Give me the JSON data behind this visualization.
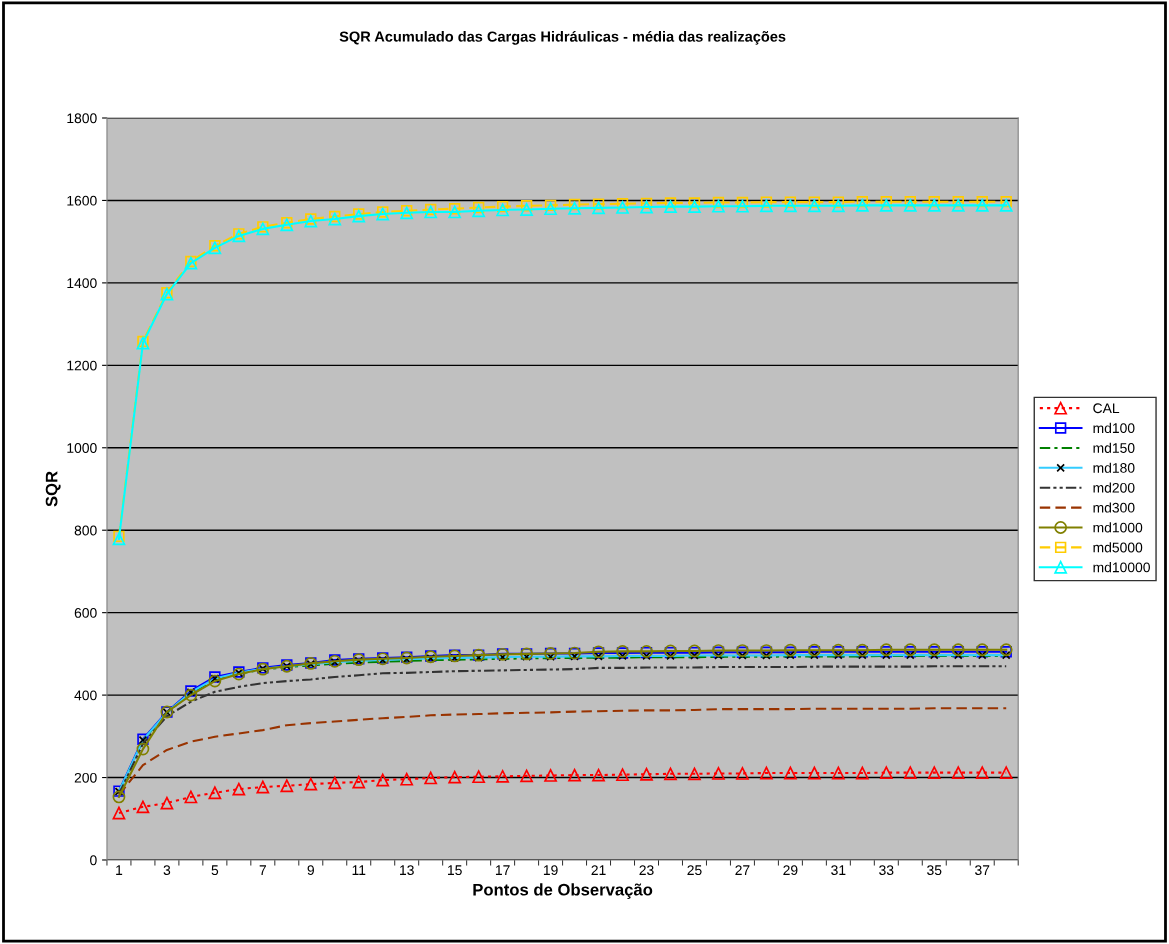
{
  "chart_data": {
    "type": "line",
    "title": "SQR Acumulado das Cargas Hidráulicas - média das realizações",
    "xlabel": "Pontos de Observação",
    "ylabel": "SQR",
    "categories": [
      "1",
      null,
      "3",
      null,
      "5",
      null,
      "7",
      null,
      "9",
      null,
      "11",
      null,
      "13",
      null,
      "15",
      null,
      "17",
      null,
      "19",
      null,
      "21",
      null,
      "23",
      null,
      "25",
      null,
      "27",
      null,
      "29",
      null,
      "31",
      null,
      "33",
      null,
      "35",
      null,
      "37",
      null
    ],
    "ylim": [
      0,
      1800
    ],
    "yticks": [
      0,
      200,
      400,
      600,
      800,
      1000,
      1200,
      1400,
      1600,
      1800
    ],
    "grid": "y",
    "legend": "right",
    "series": [
      {
        "name": "CAL",
        "color": "#ff0000",
        "line_style": "dotted",
        "marker": "triangle",
        "values": [
          114,
          129,
          138,
          153,
          163,
          172,
          177,
          180,
          184,
          187,
          189,
          194,
          196,
          199,
          201,
          202,
          203,
          204,
          205,
          206,
          206,
          207,
          208,
          209,
          209,
          210,
          210,
          211,
          211,
          211,
          211,
          211,
          212,
          212,
          212,
          212,
          212,
          212
        ]
      },
      {
        "name": "md100",
        "color": "#0000ff",
        "line_style": "solid",
        "marker": "square",
        "values": [
          167,
          293,
          359,
          410,
          444,
          456,
          466,
          473,
          478,
          485,
          488,
          490,
          492,
          495,
          497,
          497,
          500,
          500,
          501,
          501,
          502,
          502,
          503,
          503,
          503,
          504,
          504,
          504,
          504,
          505,
          505,
          505,
          505,
          505,
          505,
          505,
          505,
          505
        ]
      },
      {
        "name": "md150",
        "color": "#008000",
        "line_style": "dashdot",
        "marker": "none",
        "values": [
          165,
          290,
          357,
          405,
          438,
          452,
          462,
          468,
          472,
          476,
          479,
          481,
          483,
          485,
          486,
          487,
          488,
          489,
          490,
          490,
          491,
          491,
          492,
          492,
          492,
          493,
          493,
          493,
          494,
          494,
          494,
          494,
          495,
          495,
          495,
          495,
          495,
          495
        ]
      },
      {
        "name": "md180",
        "color": "#33ccff",
        "line_style": "solid",
        "marker": "cross",
        "values": [
          166,
          291,
          358,
          407,
          440,
          454,
          464,
          470,
          475,
          480,
          483,
          485,
          487,
          489,
          490,
          491,
          492,
          493,
          493,
          494,
          494,
          495,
          495,
          495,
          496,
          496,
          496,
          496,
          497,
          497,
          497,
          497,
          497,
          497,
          497,
          497,
          497,
          497
        ]
      },
      {
        "name": "md200",
        "color": "#333333",
        "line_style": "dashdotdot",
        "marker": "none",
        "values": [
          160,
          282,
          349,
          384,
          408,
          420,
          429,
          434,
          438,
          444,
          448,
          453,
          454,
          456,
          458,
          459,
          460,
          461,
          462,
          463,
          466,
          466,
          467,
          467,
          467,
          468,
          468,
          468,
          468,
          469,
          469,
          469,
          469,
          469,
          470,
          470,
          470,
          470
        ]
      },
      {
        "name": "md300",
        "color": "#993300",
        "line_style": "dashed",
        "marker": "none",
        "values": [
          158,
          230,
          267,
          287,
          299,
          307,
          315,
          327,
          332,
          336,
          340,
          344,
          347,
          351,
          353,
          354,
          356,
          357,
          358,
          360,
          361,
          362,
          363,
          363,
          364,
          366,
          366,
          366,
          366,
          367,
          367,
          367,
          367,
          367,
          368,
          368,
          368,
          368
        ]
      },
      {
        "name": "md1000",
        "color": "#808000",
        "line_style": "solid",
        "marker": "circle",
        "values": [
          153,
          269,
          359,
          400,
          434,
          451,
          463,
          470,
          477,
          482,
          486,
          488,
          490,
          493,
          495,
          497,
          499,
          500,
          501,
          502,
          505,
          506,
          506,
          507,
          507,
          508,
          508,
          508,
          509,
          509,
          509,
          509,
          510,
          510,
          510,
          510,
          510,
          510
        ]
      },
      {
        "name": "md5000",
        "color": "#ffcc00",
        "line_style": "dashed",
        "marker": "square",
        "values": [
          785,
          1258,
          1376,
          1452,
          1490,
          1519,
          1536,
          1546,
          1555,
          1561,
          1567,
          1572,
          1575,
          1578,
          1580,
          1583,
          1585,
          1587,
          1588,
          1590,
          1591,
          1592,
          1593,
          1594,
          1594,
          1595,
          1595,
          1596,
          1596,
          1596,
          1596,
          1597,
          1597,
          1597,
          1597,
          1597,
          1597,
          1597
        ]
      },
      {
        "name": "md10000",
        "color": "#00ffff",
        "line_style": "solid",
        "marker": "triangle",
        "values": [
          779,
          1254,
          1373,
          1448,
          1485,
          1514,
          1531,
          1541,
          1550,
          1555,
          1562,
          1567,
          1570,
          1572,
          1572,
          1575,
          1577,
          1578,
          1580,
          1581,
          1582,
          1583,
          1584,
          1585,
          1585,
          1586,
          1586,
          1587,
          1587,
          1587,
          1587,
          1588,
          1588,
          1588,
          1588,
          1588,
          1588,
          1588
        ]
      }
    ]
  }
}
